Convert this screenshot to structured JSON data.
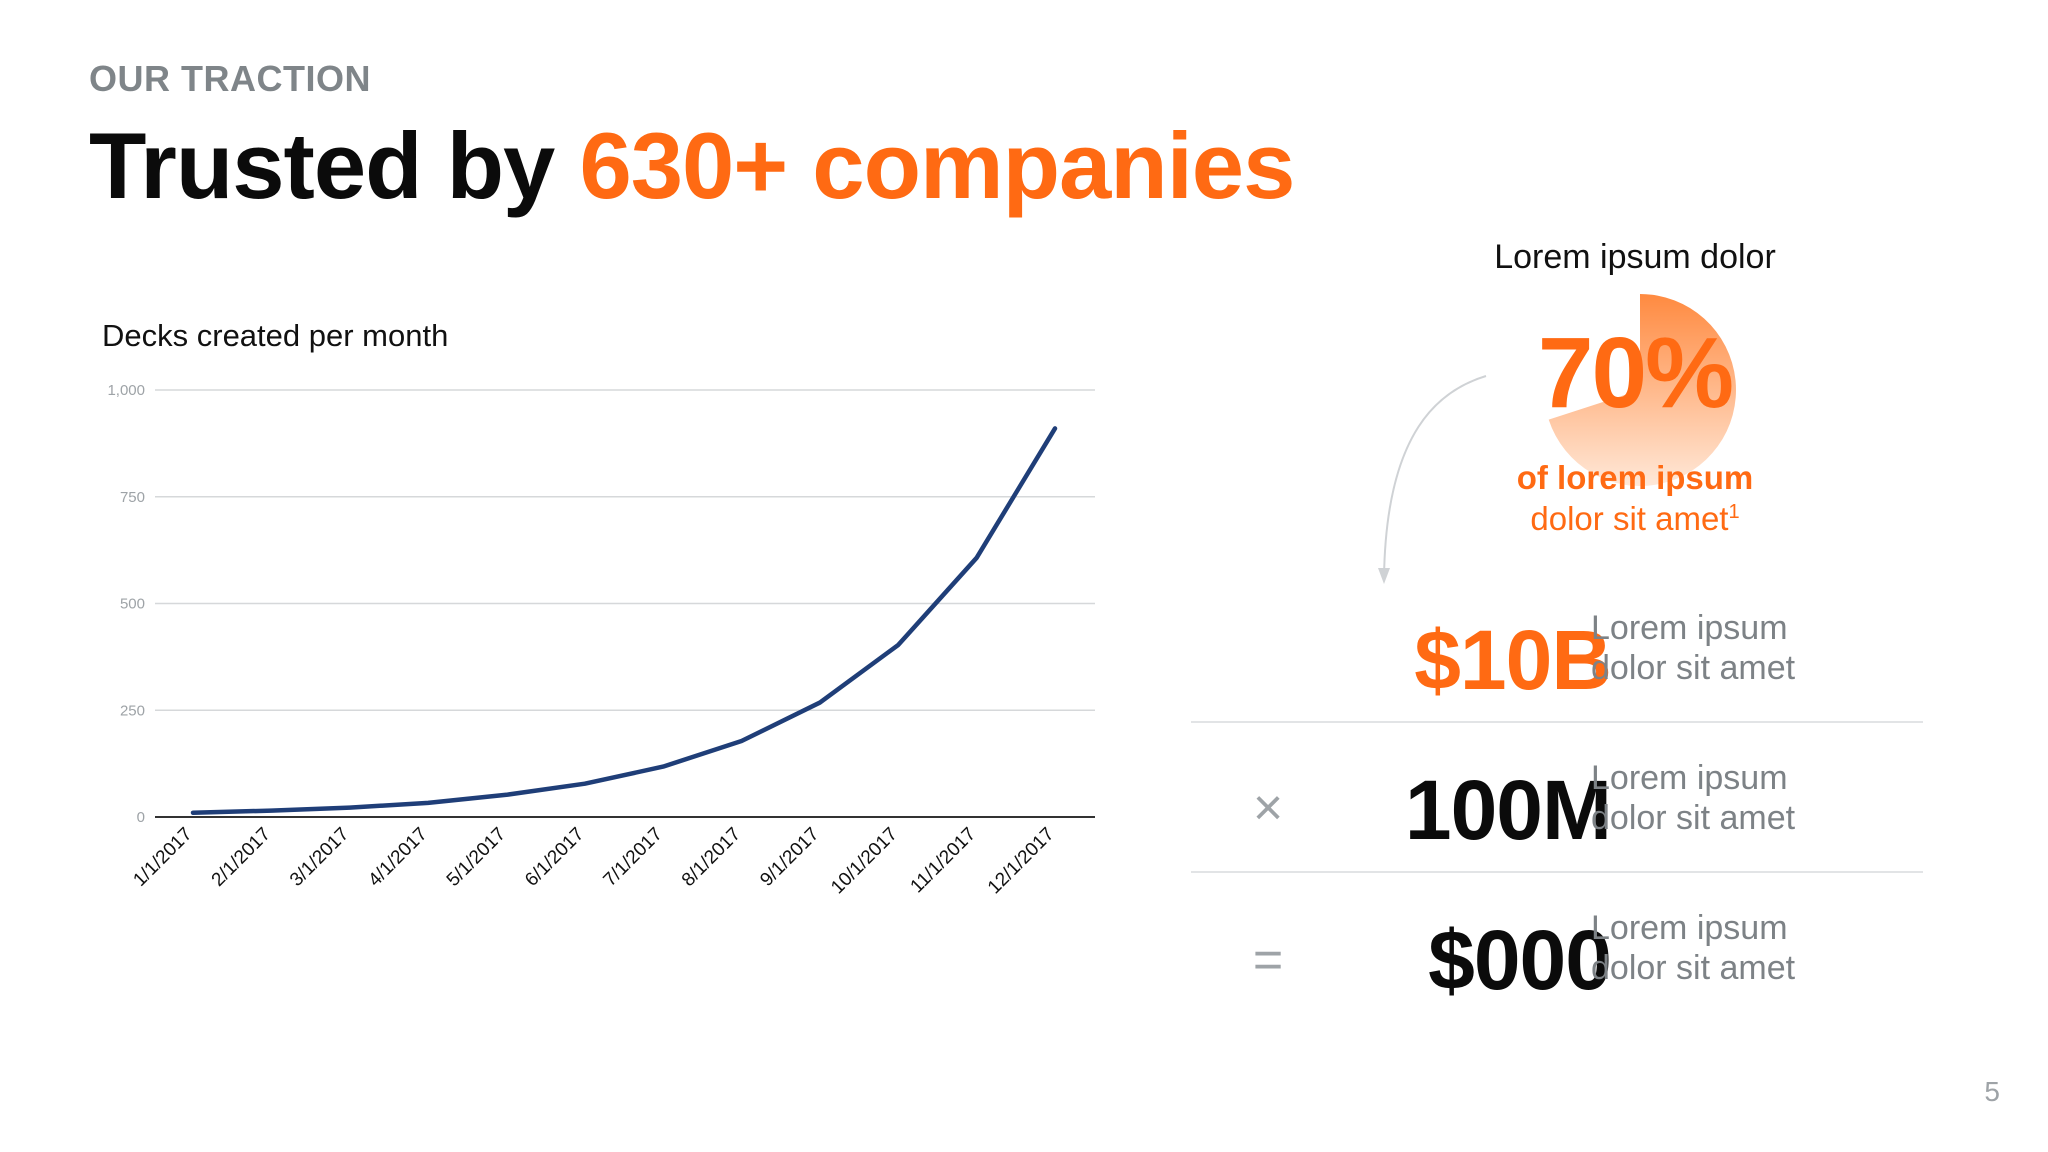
{
  "header": {
    "eyebrow": "OUR TRACTION",
    "title_prefix": "Trusted by ",
    "title_highlight": "630+ companies"
  },
  "colors": {
    "accent": "#ff6a13",
    "line": "#1f3e78",
    "muted": "#7d8286"
  },
  "chart_data": {
    "type": "line",
    "title": "Decks created per month",
    "xlabel": "",
    "ylabel": "",
    "ylim": [
      0,
      1000
    ],
    "yticks": [
      {
        "value": 0,
        "label": "0"
      },
      {
        "value": 250,
        "label": "250"
      },
      {
        "value": 500,
        "label": "500"
      },
      {
        "value": 750,
        "label": "750"
      },
      {
        "value": 1000,
        "label": "1,000"
      }
    ],
    "categories": [
      "1/1/2017",
      "2/1/2017",
      "3/1/2017",
      "4/1/2017",
      "5/1/2017",
      "6/1/2017",
      "7/1/2017",
      "8/1/2017",
      "9/1/2017",
      "10/1/2017",
      "11/1/2017",
      "12/1/2017"
    ],
    "series": [
      {
        "values": [
          10,
          15,
          22,
          33,
          52,
          78,
          118,
          178,
          268,
          403,
          607,
          910
        ]
      }
    ],
    "grid": true,
    "legend": "none"
  },
  "stat_pie": {
    "caption": "Lorem ipsum dolor",
    "percent_value": 70,
    "percent_label": "70%",
    "sub_bold": "of lorem ipsum",
    "sub_regular": "dolor sit amet",
    "footnote_mark": "1"
  },
  "calc_rows": [
    {
      "operator": "",
      "value": "$10B",
      "desc_line1": "Lorem ipsum",
      "desc_line2": "dolor sit amet"
    },
    {
      "operator": "×",
      "value": "100M",
      "desc_line1": "Lorem ipsum",
      "desc_line2": "dolor sit amet"
    },
    {
      "operator": "=",
      "value": "$000",
      "desc_line1": "Lorem ipsum",
      "desc_line2": "dolor sit amet"
    }
  ],
  "page_number": "5"
}
